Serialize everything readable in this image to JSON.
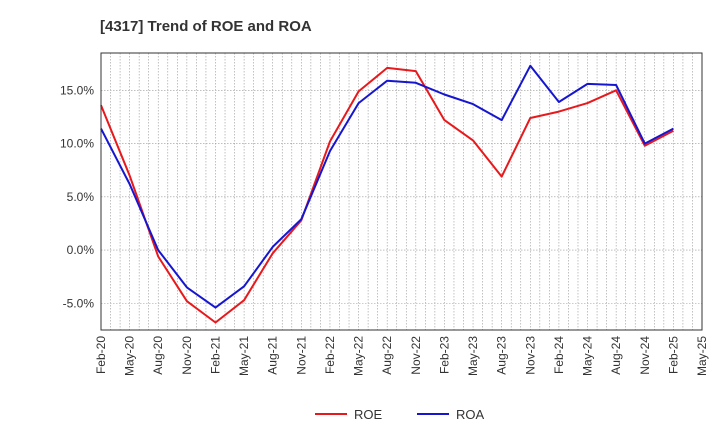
{
  "chart_data": {
    "type": "line",
    "title": "[4317]  Trend of ROE and ROA",
    "xlabel": "",
    "ylabel": "",
    "x_ticks": [
      "Feb-20",
      "May-20",
      "Aug-20",
      "Nov-20",
      "Feb-21",
      "May-21",
      "Aug-21",
      "Nov-21",
      "Feb-22",
      "May-22",
      "Aug-22",
      "Nov-22",
      "Feb-23",
      "May-23",
      "Aug-23",
      "Nov-23",
      "Feb-24",
      "May-24",
      "Aug-24",
      "Nov-24",
      "Feb-25",
      "May-25"
    ],
    "y_ticks": [
      -5,
      0,
      5,
      10,
      15
    ],
    "y_tick_labels": [
      "-5.0%",
      "0.0%",
      "5.0%",
      "10.0%",
      "15.0%"
    ],
    "ylim": [
      -7.5,
      18.5
    ],
    "grid": true,
    "legend_position": "bottom-center",
    "series": [
      {
        "name": "ROE",
        "color": "#e8191c",
        "x": [
          "Feb-20",
          "May-20",
          "Aug-20",
          "Nov-20",
          "Feb-21",
          "May-21",
          "Aug-21",
          "Nov-21",
          "Feb-22",
          "May-22",
          "Aug-22",
          "Nov-22",
          "Feb-23",
          "May-23",
          "Aug-23",
          "Nov-23",
          "Feb-24",
          "May-24",
          "Aug-24",
          "Nov-24",
          "Feb-25"
        ],
        "values": [
          13.6,
          7.0,
          -0.6,
          -4.8,
          -6.8,
          -4.7,
          -0.3,
          2.8,
          10.2,
          14.9,
          17.1,
          16.8,
          12.2,
          10.3,
          6.9,
          12.4,
          13.0,
          13.8,
          15.0,
          9.8,
          11.2
        ]
      },
      {
        "name": "ROA",
        "color": "#1616d0",
        "x": [
          "Feb-20",
          "May-20",
          "Aug-20",
          "Nov-20",
          "Feb-21",
          "May-21",
          "Aug-21",
          "Nov-21",
          "Feb-22",
          "May-22",
          "Aug-22",
          "Nov-22",
          "Feb-23",
          "May-23",
          "Aug-23",
          "Nov-23",
          "Feb-24",
          "May-24",
          "Aug-24",
          "Nov-24",
          "Feb-25"
        ],
        "values": [
          11.4,
          6.2,
          0.0,
          -3.5,
          -5.4,
          -3.4,
          0.3,
          2.9,
          9.3,
          13.8,
          15.9,
          15.7,
          14.6,
          13.7,
          12.2,
          17.3,
          13.9,
          15.6,
          15.5,
          10.0,
          11.4
        ]
      }
    ]
  }
}
